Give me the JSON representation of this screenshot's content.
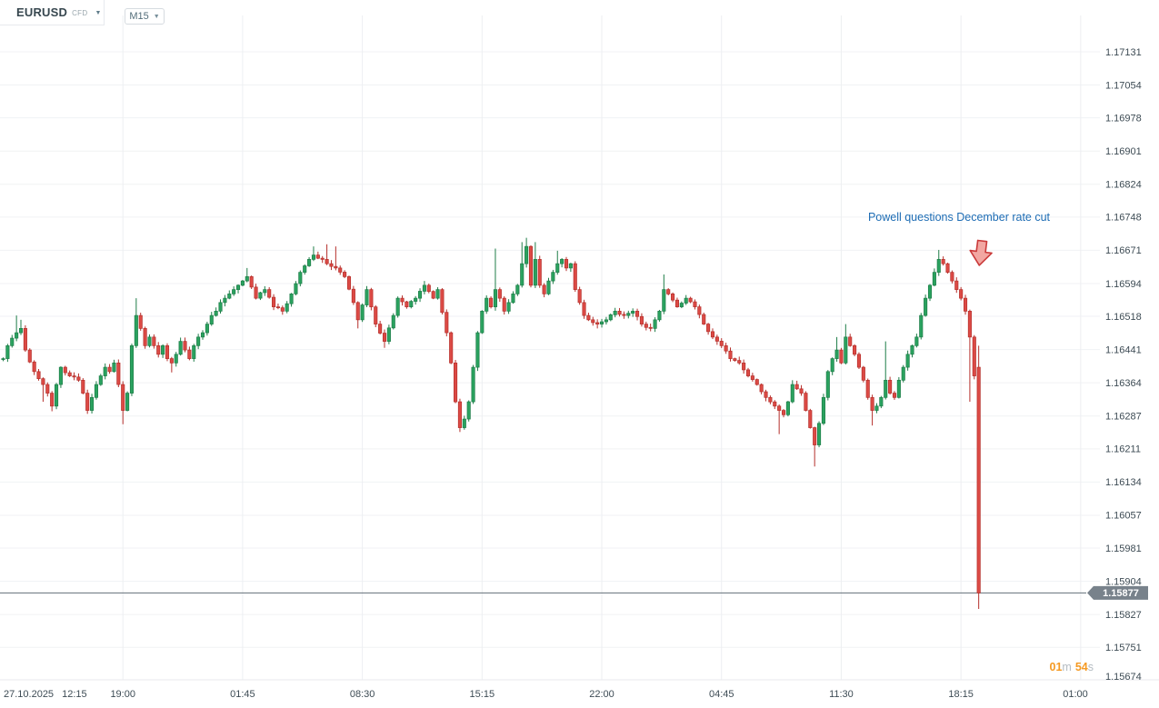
{
  "toolbar": {
    "symbol": "EURUSD",
    "instrument_type": "CFD",
    "timeframe": "M15",
    "symbol_caret": "▼",
    "timeframe_caret": "▼"
  },
  "annotation": {
    "text": "Powell questions December rate cut",
    "color": "#1d6cb4",
    "arrow": "red-down-arrow"
  },
  "price_tag": {
    "value": "1.15877",
    "bg": "#78828b"
  },
  "countdown": {
    "minutes": "01",
    "minutes_unit": "m",
    "seconds": "54",
    "seconds_unit": "s",
    "accent": "#f59a23"
  },
  "chart_data": {
    "type": "candlestick",
    "symbol": "EURUSD",
    "instrument_type": "CFD",
    "interval": "M15 (15-minute bars)",
    "grid": true,
    "legend": false,
    "background": "#ffffff",
    "current_price": 1.15877,
    "price_line": 1.15877,
    "countdown_to_bar_close": "01m 54s",
    "ylim": [
      1.15674,
      1.17131
    ],
    "y_ticks": [
      "1.17131",
      "1.17054",
      "1.16978",
      "1.16901",
      "1.16824",
      "1.16748",
      "1.16671",
      "1.16594",
      "1.16518",
      "1.16441",
      "1.16364",
      "1.16287",
      "1.16211",
      "1.16134",
      "1.16057",
      "1.15981",
      "1.15904",
      "1.15827",
      "1.15751",
      "1.15674"
    ],
    "x_ticks": [
      {
        "label": "27.10.2025 12:15",
        "bar": 0,
        "align": "left"
      },
      {
        "label": "19:00",
        "bar": 27
      },
      {
        "label": "01:45",
        "bar": 54
      },
      {
        "label": "08:30",
        "bar": 81
      },
      {
        "label": "15:15",
        "bar": 108
      },
      {
        "label": "22:00",
        "bar": 135
      },
      {
        "label": "04:45",
        "bar": 162
      },
      {
        "label": "11:30",
        "bar": 189
      },
      {
        "label": "18:15",
        "bar": 216
      },
      {
        "label": "01:00",
        "bar": 243
      }
    ],
    "visible_bars": 221,
    "colors": {
      "up_fill": "#2aa25f",
      "up_stroke": "#1e7d48",
      "down_fill": "#dc4a45",
      "down_stroke": "#b52f2b",
      "grid": "#f0f2f4",
      "axis_text": "#3d4b54"
    },
    "annotation_event": {
      "text": "Powell questions December rate cut",
      "arrow_at_bar": 220
    },
    "anchors_note": "swing points read from chart: [bar_index, close, wick_high|null, wick_low|null]; bars between anchors interpolate",
    "anchors": [
      [
        0,
        1.1642,
        null,
        null
      ],
      [
        1,
        1.1645,
        null,
        null
      ],
      [
        3,
        1.1648,
        1.1652,
        null
      ],
      [
        4,
        1.1649,
        1.1651,
        null
      ],
      [
        5,
        1.1644,
        null,
        null
      ],
      [
        7,
        1.1639,
        null,
        null
      ],
      [
        9,
        1.1636,
        null,
        1.1632
      ],
      [
        10,
        1.1634,
        null,
        null
      ],
      [
        11,
        1.1631,
        null,
        1.16298
      ],
      [
        12,
        1.1636,
        null,
        null
      ],
      [
        13,
        1.164,
        null,
        null
      ],
      [
        15,
        1.1638,
        null,
        null
      ],
      [
        17,
        1.1637,
        null,
        null
      ],
      [
        18,
        1.1634,
        null,
        null
      ],
      [
        19,
        1.163,
        null,
        1.16292
      ],
      [
        20,
        1.1633,
        null,
        null
      ],
      [
        21,
        1.1636,
        null,
        null
      ],
      [
        22,
        1.1638,
        null,
        null
      ],
      [
        23,
        1.164,
        null,
        null
      ],
      [
        24,
        1.1639,
        null,
        null
      ],
      [
        25,
        1.1641,
        null,
        null
      ],
      [
        26,
        1.1636,
        null,
        null
      ],
      [
        27,
        1.163,
        null,
        1.16268
      ],
      [
        28,
        1.1634,
        null,
        null
      ],
      [
        29,
        1.1645,
        null,
        null
      ],
      [
        30,
        1.1652,
        1.1656,
        null
      ],
      [
        31,
        1.1649,
        null,
        null
      ],
      [
        32,
        1.1645,
        null,
        null
      ],
      [
        33,
        1.1647,
        null,
        null
      ],
      [
        34,
        1.1645,
        null,
        null
      ],
      [
        35,
        1.1643,
        null,
        null
      ],
      [
        36,
        1.1645,
        null,
        null
      ],
      [
        37,
        1.1642,
        null,
        null
      ],
      [
        38,
        1.1641,
        null,
        1.16388
      ],
      [
        39,
        1.1643,
        null,
        null
      ],
      [
        40,
        1.1646,
        null,
        null
      ],
      [
        41,
        1.1644,
        null,
        null
      ],
      [
        42,
        1.1642,
        null,
        null
      ],
      [
        43,
        1.1645,
        null,
        null
      ],
      [
        44,
        1.1647,
        null,
        null
      ],
      [
        45,
        1.1648,
        null,
        null
      ],
      [
        46,
        1.165,
        null,
        null
      ],
      [
        47,
        1.1652,
        null,
        null
      ],
      [
        48,
        1.1653,
        null,
        null
      ],
      [
        49,
        1.1655,
        null,
        null
      ],
      [
        50,
        1.1656,
        null,
        null
      ],
      [
        51,
        1.1657,
        null,
        null
      ],
      [
        52,
        1.1658,
        null,
        null
      ],
      [
        53,
        1.1659,
        null,
        null
      ],
      [
        54,
        1.166,
        null,
        null
      ],
      [
        55,
        1.1661,
        1.1663,
        null
      ],
      [
        57,
        1.1656,
        null,
        null
      ],
      [
        59,
        1.1658,
        null,
        null
      ],
      [
        61,
        1.1654,
        null,
        null
      ],
      [
        63,
        1.1653,
        null,
        null
      ],
      [
        65,
        1.1657,
        null,
        null
      ],
      [
        67,
        1.1662,
        null,
        null
      ],
      [
        69,
        1.1665,
        null,
        null
      ],
      [
        70,
        1.1666,
        1.1668,
        null
      ],
      [
        72,
        1.1665,
        null,
        null
      ],
      [
        73,
        1.1664,
        1.16685,
        null
      ],
      [
        75,
        1.1663,
        1.1668,
        null
      ],
      [
        77,
        1.1661,
        null,
        null
      ],
      [
        79,
        1.1655,
        null,
        null
      ],
      [
        80,
        1.1651,
        null,
        1.1649
      ],
      [
        82,
        1.1658,
        null,
        null
      ],
      [
        84,
        1.165,
        null,
        null
      ],
      [
        86,
        1.1646,
        null,
        1.16445
      ],
      [
        88,
        1.1652,
        null,
        null
      ],
      [
        89,
        1.1656,
        null,
        null
      ],
      [
        91,
        1.1654,
        null,
        null
      ],
      [
        93,
        1.1656,
        null,
        null
      ],
      [
        95,
        1.1659,
        1.166,
        null
      ],
      [
        97,
        1.1656,
        null,
        null
      ],
      [
        98,
        1.1658,
        null,
        null
      ],
      [
        100,
        1.1648,
        null,
        null
      ],
      [
        101,
        1.1641,
        null,
        null
      ],
      [
        102,
        1.1632,
        null,
        null
      ],
      [
        103,
        1.1626,
        null,
        1.1625
      ],
      [
        104,
        1.1628,
        null,
        null
      ],
      [
        105,
        1.1632,
        null,
        null
      ],
      [
        106,
        1.164,
        null,
        null
      ],
      [
        107,
        1.1648,
        null,
        null
      ],
      [
        108,
        1.1653,
        null,
        null
      ],
      [
        109,
        1.1656,
        null,
        null
      ],
      [
        110,
        1.1654,
        null,
        null
      ],
      [
        111,
        1.1658,
        1.16675,
        null
      ],
      [
        112,
        1.1656,
        null,
        null
      ],
      [
        113,
        1.1653,
        null,
        null
      ],
      [
        114,
        1.1655,
        null,
        null
      ],
      [
        115,
        1.1657,
        null,
        null
      ],
      [
        116,
        1.1659,
        null,
        null
      ],
      [
        117,
        1.1664,
        1.1669,
        null
      ],
      [
        118,
        1.1668,
        1.167,
        null
      ],
      [
        119,
        1.1659,
        null,
        null
      ],
      [
        120,
        1.1665,
        1.1669,
        null
      ],
      [
        121,
        1.1659,
        null,
        null
      ],
      [
        122,
        1.1657,
        null,
        null
      ],
      [
        123,
        1.166,
        null,
        null
      ],
      [
        124,
        1.1662,
        null,
        null
      ],
      [
        125,
        1.1664,
        1.1667,
        null
      ],
      [
        126,
        1.1665,
        null,
        null
      ],
      [
        127,
        1.1663,
        null,
        null
      ],
      [
        128,
        1.1664,
        null,
        null
      ],
      [
        129,
        1.1658,
        null,
        null
      ],
      [
        130,
        1.1655,
        null,
        null
      ],
      [
        131,
        1.1652,
        null,
        null
      ],
      [
        132,
        1.1651,
        null,
        null
      ],
      [
        134,
        1.165,
        null,
        1.1649
      ],
      [
        136,
        1.1651,
        null,
        null
      ],
      [
        138,
        1.1653,
        null,
        null
      ],
      [
        140,
        1.1652,
        null,
        null
      ],
      [
        142,
        1.1653,
        null,
        null
      ],
      [
        144,
        1.165,
        null,
        null
      ],
      [
        146,
        1.1649,
        null,
        null
      ],
      [
        147,
        1.1651,
        null,
        null
      ],
      [
        148,
        1.1653,
        null,
        null
      ],
      [
        149,
        1.1658,
        1.16615,
        null
      ],
      [
        150,
        1.1657,
        null,
        null
      ],
      [
        152,
        1.1654,
        null,
        null
      ],
      [
        154,
        1.1656,
        null,
        null
      ],
      [
        156,
        1.1654,
        null,
        null
      ],
      [
        158,
        1.165,
        null,
        null
      ],
      [
        160,
        1.1647,
        null,
        null
      ],
      [
        162,
        1.1645,
        null,
        null
      ],
      [
        164,
        1.1642,
        null,
        null
      ],
      [
        166,
        1.1641,
        null,
        null
      ],
      [
        168,
        1.1638,
        null,
        null
      ],
      [
        170,
        1.1636,
        null,
        null
      ],
      [
        172,
        1.1633,
        null,
        null
      ],
      [
        174,
        1.1631,
        null,
        null
      ],
      [
        175,
        1.163,
        null,
        1.16245
      ],
      [
        176,
        1.1629,
        null,
        null
      ],
      [
        177,
        1.1632,
        null,
        null
      ],
      [
        178,
        1.1636,
        1.1637,
        null
      ],
      [
        179,
        1.1635,
        null,
        null
      ],
      [
        180,
        1.1634,
        null,
        null
      ],
      [
        181,
        1.163,
        null,
        null
      ],
      [
        182,
        1.1626,
        null,
        null
      ],
      [
        183,
        1.1622,
        null,
        1.1617
      ],
      [
        184,
        1.1627,
        null,
        null
      ],
      [
        185,
        1.1633,
        null,
        null
      ],
      [
        186,
        1.1639,
        null,
        null
      ],
      [
        187,
        1.1642,
        null,
        null
      ],
      [
        188,
        1.1644,
        1.1647,
        null
      ],
      [
        189,
        1.1641,
        null,
        null
      ],
      [
        190,
        1.1647,
        1.165,
        null
      ],
      [
        191,
        1.1645,
        null,
        null
      ],
      [
        192,
        1.1643,
        null,
        null
      ],
      [
        193,
        1.164,
        null,
        null
      ],
      [
        194,
        1.1637,
        null,
        null
      ],
      [
        195,
        1.1633,
        null,
        null
      ],
      [
        196,
        1.163,
        null,
        1.16265
      ],
      [
        197,
        1.1631,
        null,
        null
      ],
      [
        198,
        1.1633,
        null,
        null
      ],
      [
        199,
        1.1637,
        1.1646,
        null
      ],
      [
        200,
        1.1634,
        null,
        null
      ],
      [
        201,
        1.1633,
        null,
        null
      ],
      [
        202,
        1.1637,
        null,
        null
      ],
      [
        203,
        1.164,
        null,
        null
      ],
      [
        204,
        1.1643,
        null,
        null
      ],
      [
        205,
        1.1645,
        null,
        null
      ],
      [
        206,
        1.1647,
        null,
        null
      ],
      [
        207,
        1.1652,
        null,
        null
      ],
      [
        208,
        1.1656,
        null,
        null
      ],
      [
        209,
        1.1659,
        null,
        null
      ],
      [
        210,
        1.1662,
        null,
        null
      ],
      [
        211,
        1.1665,
        1.16672,
        null
      ],
      [
        212,
        1.1664,
        null,
        null
      ],
      [
        213,
        1.1662,
        null,
        null
      ],
      [
        214,
        1.166,
        null,
        null
      ],
      [
        215,
        1.1658,
        null,
        null
      ],
      [
        216,
        1.1656,
        null,
        null
      ],
      [
        217,
        1.1653,
        null,
        null
      ],
      [
        218,
        1.1647,
        null,
        1.1632
      ],
      [
        219,
        1.1638,
        null,
        null
      ],
      [
        220,
        1.15877,
        null,
        null
      ]
    ],
    "last_bar": {
      "open": 1.164,
      "high": 1.1645,
      "low": 1.1584,
      "close": 1.15877
    }
  }
}
